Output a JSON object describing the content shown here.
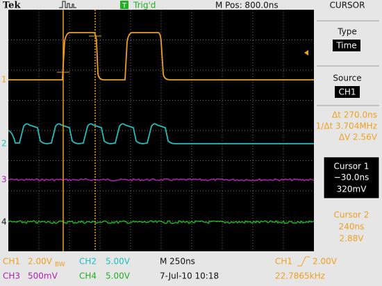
{
  "header": {
    "brand": "Tek",
    "trigger_mark": "T",
    "trigger_status": "Trig'd",
    "position": "M Pos: 800.0ns",
    "menu": "CURSOR"
  },
  "markers": [
    "1",
    "2",
    "3",
    "4"
  ],
  "panel": {
    "type_label": "Type",
    "type_value": "Time",
    "source_label": "Source",
    "source_value": "CH1",
    "delta_t": "Δt 270.0ns",
    "inv_delta_t": "1/Δt 3.704MHz",
    "delta_v": "ΔV 2.56V",
    "cursor1": {
      "title": "Cursor 1",
      "time": "−30.0ns",
      "volt": "320mV"
    },
    "cursor2": {
      "title": "Cursor 2",
      "time": "240ns",
      "volt": "2.88V"
    }
  },
  "footer": {
    "ch1": "CH1",
    "ch1_scale": "2.00V",
    "ch1_bw": "BW",
    "ch2": "CH2",
    "ch2_scale": "5.00V",
    "timebase": "M 250ns",
    "trig_source": "CH1",
    "trig_level": "2.00V",
    "ch3": "CH3",
    "ch3_scale": "500mV",
    "ch4": "CH4",
    "ch4_scale": "5.00V",
    "date": "7-Jul-10 10:18",
    "frequency": "22.7865kHz"
  }
}
